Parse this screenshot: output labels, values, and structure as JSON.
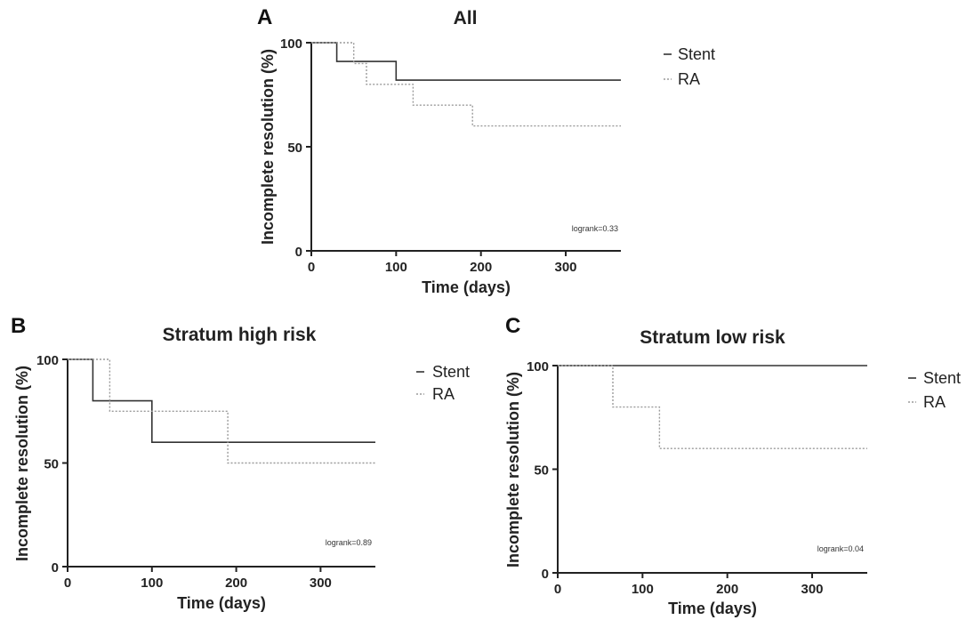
{
  "chart_data": [
    {
      "type": "line",
      "panel_label": "A",
      "title": "All",
      "xlabel": "Time (days)",
      "ylabel": "Incomplete resolution (%)",
      "xlim": [
        0,
        365
      ],
      "ylim": [
        0,
        100
      ],
      "xticks": [
        0,
        100,
        200,
        300
      ],
      "yticks": [
        0,
        50,
        100
      ],
      "grid": false,
      "legend_position": "right",
      "annotation": "logrank=0.33",
      "series": [
        {
          "name": "Stent",
          "style": "solid",
          "color": "#333333",
          "x": [
            0,
            30,
            30,
            100,
            100,
            365
          ],
          "y": [
            100,
            100,
            91,
            91,
            82,
            82
          ]
        },
        {
          "name": "RA",
          "style": "dotted",
          "color": "#9a9a9a",
          "x": [
            0,
            50,
            50,
            65,
            65,
            100,
            100,
            120,
            120,
            190,
            190,
            365
          ],
          "y": [
            100,
            100,
            90,
            90,
            80,
            80,
            80,
            80,
            70,
            70,
            60,
            60
          ]
        }
      ]
    },
    {
      "type": "line",
      "panel_label": "B",
      "title": "Stratum high risk",
      "xlabel": "Time (days)",
      "ylabel": "Incomplete resolution (%)",
      "xlim": [
        0,
        365
      ],
      "ylim": [
        0,
        100
      ],
      "xticks": [
        0,
        100,
        200,
        300
      ],
      "yticks": [
        0,
        50,
        100
      ],
      "grid": false,
      "legend_position": "right",
      "annotation": "logrank=0.89",
      "series": [
        {
          "name": "Stent",
          "style": "solid",
          "color": "#333333",
          "x": [
            0,
            30,
            30,
            100,
            100,
            365
          ],
          "y": [
            100,
            100,
            80,
            80,
            60,
            60
          ]
        },
        {
          "name": "RA",
          "style": "dotted",
          "color": "#9a9a9a",
          "x": [
            0,
            50,
            50,
            190,
            190,
            365
          ],
          "y": [
            100,
            100,
            75,
            75,
            50,
            50
          ]
        }
      ]
    },
    {
      "type": "line",
      "panel_label": "C",
      "title": "Stratum low risk",
      "xlabel": "Time (days)",
      "ylabel": "Incomplete resolution (%)",
      "xlim": [
        0,
        365
      ],
      "ylim": [
        0,
        100
      ],
      "xticks": [
        0,
        100,
        200,
        300
      ],
      "yticks": [
        0,
        50,
        100
      ],
      "grid": false,
      "legend_position": "right",
      "annotation": "logrank=0.04",
      "series": [
        {
          "name": "Stent",
          "style": "solid",
          "color": "#333333",
          "x": [
            0,
            365
          ],
          "y": [
            100,
            100
          ]
        },
        {
          "name": "RA",
          "style": "dotted",
          "color": "#9a9a9a",
          "x": [
            0,
            65,
            65,
            120,
            120,
            365
          ],
          "y": [
            100,
            100,
            80,
            80,
            60,
            60
          ]
        }
      ]
    }
  ]
}
